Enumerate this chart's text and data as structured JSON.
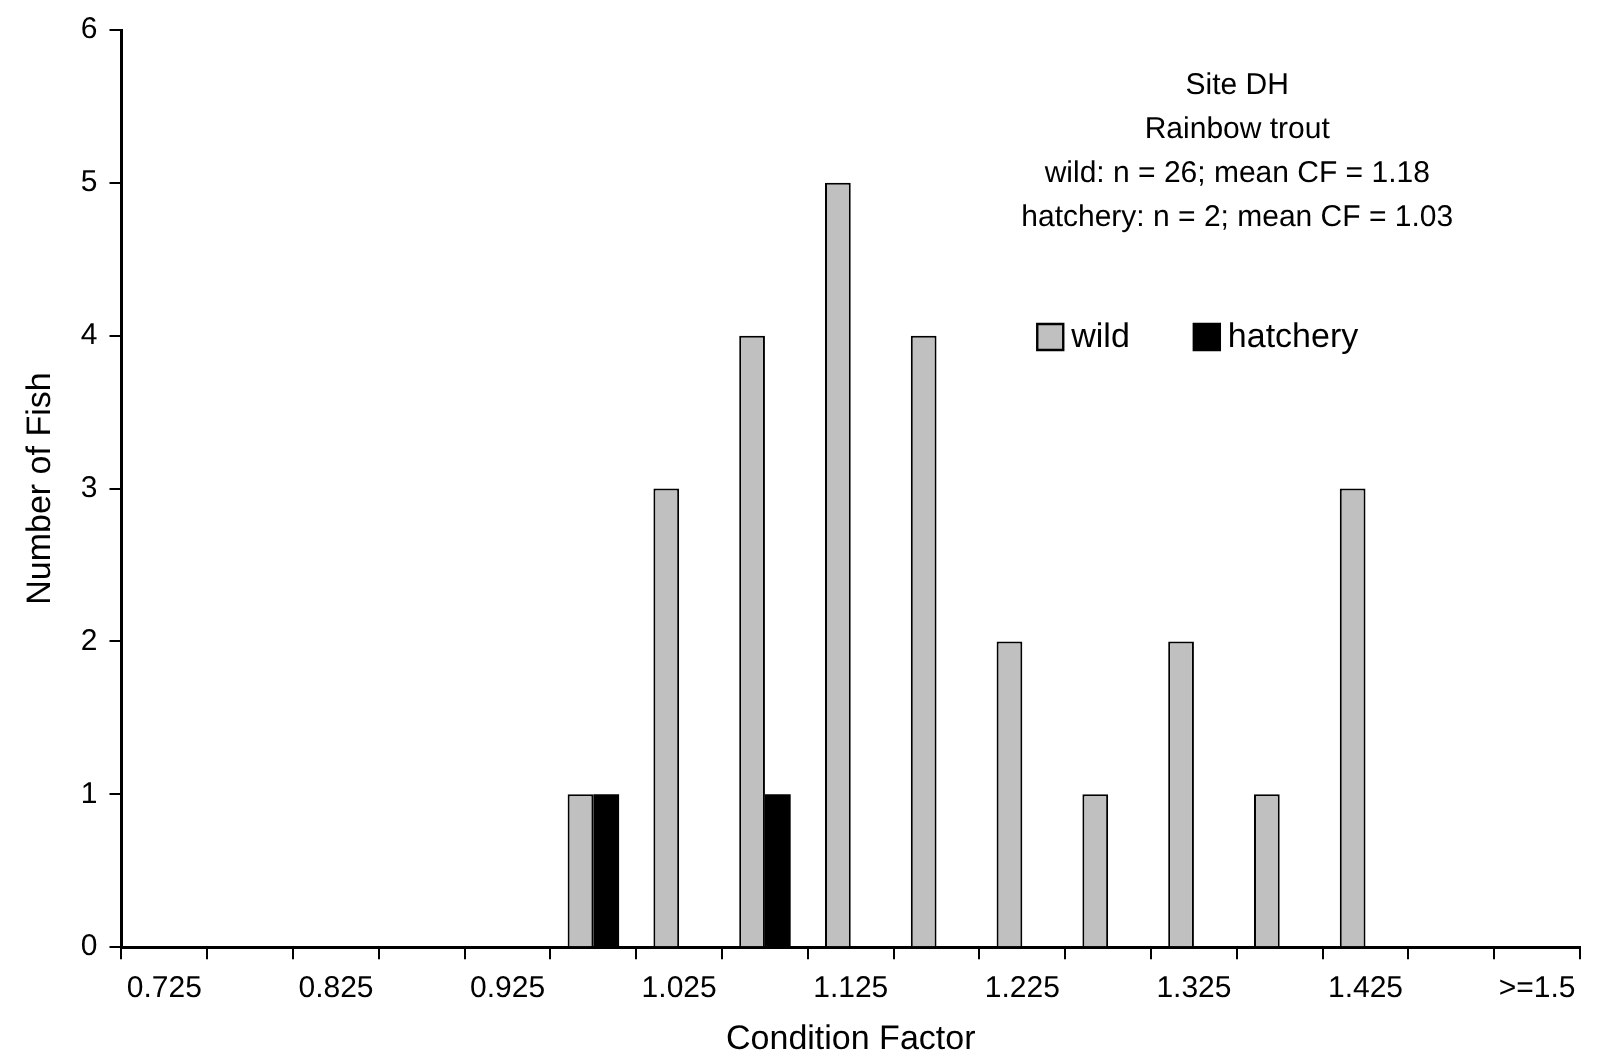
{
  "chart_data": {
    "type": "bar",
    "xlabel": "Condition Factor",
    "ylabel": "Number of Fish",
    "annotations": [
      "Site DH",
      "Rainbow trout",
      "wild: n = 26; mean CF = 1.18",
      "hatchery: n = 2; mean CF = 1.03"
    ],
    "categories": [
      "0.725",
      null,
      "0.825",
      null,
      "0.925",
      null,
      "1.025",
      null,
      "1.125",
      null,
      "1.225",
      null,
      "1.325",
      null,
      "1.425",
      null,
      ">=1.5"
    ],
    "series": [
      {
        "name": "wild",
        "color": "#c0c0c0",
        "values": [
          0,
          0,
          0,
          0,
          0,
          1,
          3,
          4,
          5,
          4,
          2,
          1,
          2,
          1,
          3,
          0,
          0
        ]
      },
      {
        "name": "hatchery",
        "color": "#000000",
        "values": [
          0,
          0,
          0,
          0,
          0,
          1,
          0,
          1,
          0,
          0,
          0,
          0,
          0,
          0,
          0,
          0,
          0
        ]
      }
    ],
    "ylim": [
      0,
      6
    ],
    "yticks": [
      0,
      1,
      2,
      3,
      4,
      5,
      6
    ],
    "legend": "top right"
  }
}
